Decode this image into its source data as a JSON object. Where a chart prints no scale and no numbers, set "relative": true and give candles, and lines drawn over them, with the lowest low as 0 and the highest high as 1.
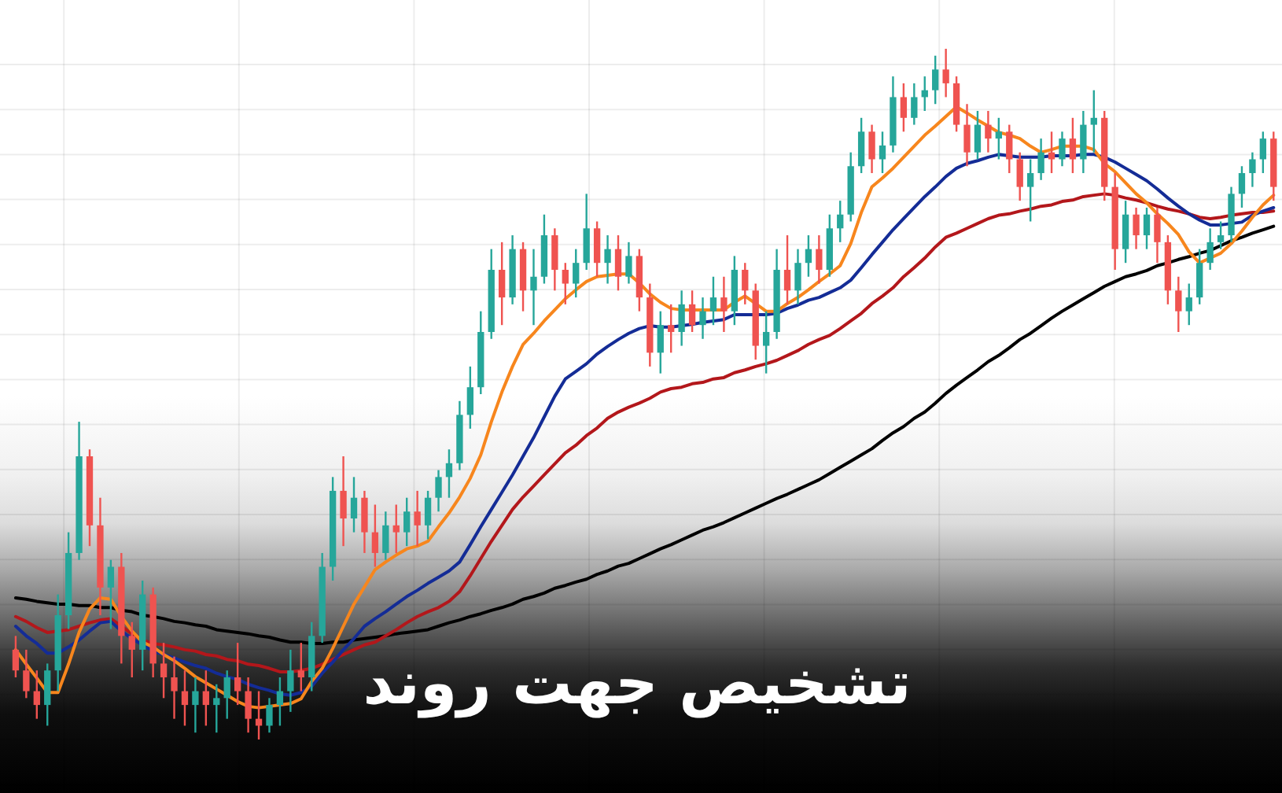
{
  "chart_data": {
    "type": "candlestick",
    "title": "تشخیص جهت روند",
    "relative": true,
    "grid": true,
    "categories": [
      null,
      null,
      null,
      null,
      null,
      null,
      null,
      null,
      null,
      null,
      null,
      null,
      null,
      null,
      null,
      null,
      null,
      null,
      null,
      null,
      null,
      null,
      null,
      null,
      null,
      null,
      null,
      null,
      null,
      null,
      null,
      null,
      null,
      null,
      null,
      null,
      null,
      null,
      null,
      null,
      null,
      null,
      null,
      null,
      null,
      null,
      null,
      null,
      null,
      null,
      null,
      null,
      null,
      null,
      null,
      null,
      null,
      null,
      null,
      null,
      null,
      null,
      null,
      null,
      null,
      null,
      null,
      null,
      null,
      null,
      null,
      null,
      null,
      null,
      null,
      null,
      null,
      null,
      null,
      null,
      null,
      null,
      null,
      null,
      null,
      null,
      null,
      null,
      null,
      null,
      null,
      null,
      null,
      null,
      null,
      null,
      null,
      null,
      null,
      null,
      null,
      null,
      null,
      null,
      null,
      null,
      null,
      null,
      null,
      null,
      null,
      null,
      null,
      null,
      null,
      null,
      null,
      null,
      null,
      null
    ],
    "ohlc": [
      [
        0.13,
        0.15,
        0.09,
        0.1
      ],
      [
        0.1,
        0.13,
        0.06,
        0.07
      ],
      [
        0.07,
        0.1,
        0.03,
        0.05
      ],
      [
        0.05,
        0.11,
        0.02,
        0.1
      ],
      [
        0.1,
        0.21,
        0.07,
        0.18
      ],
      [
        0.18,
        0.3,
        0.16,
        0.27
      ],
      [
        0.27,
        0.46,
        0.26,
        0.41
      ],
      [
        0.41,
        0.42,
        0.28,
        0.31
      ],
      [
        0.31,
        0.35,
        0.18,
        0.22
      ],
      [
        0.22,
        0.26,
        0.16,
        0.25
      ],
      [
        0.25,
        0.27,
        0.11,
        0.15
      ],
      [
        0.15,
        0.17,
        0.09,
        0.13
      ],
      [
        0.13,
        0.23,
        0.1,
        0.21
      ],
      [
        0.21,
        0.22,
        0.09,
        0.11
      ],
      [
        0.11,
        0.14,
        0.06,
        0.09
      ],
      [
        0.09,
        0.12,
        0.03,
        0.07
      ],
      [
        0.07,
        0.1,
        0.02,
        0.05
      ],
      [
        0.05,
        0.09,
        0.01,
        0.07
      ],
      [
        0.07,
        0.1,
        0.02,
        0.05
      ],
      [
        0.05,
        0.08,
        0.01,
        0.06
      ],
      [
        0.06,
        0.1,
        0.03,
        0.09
      ],
      [
        0.09,
        0.14,
        0.05,
        0.07
      ],
      [
        0.07,
        0.09,
        0.01,
        0.03
      ],
      [
        0.03,
        0.07,
        0,
        0.02
      ],
      [
        0.02,
        0.06,
        0.01,
        0.05
      ],
      [
        0.05,
        0.09,
        0.02,
        0.07
      ],
      [
        0.07,
        0.13,
        0.04,
        0.1
      ],
      [
        0.1,
        0.14,
        0.07,
        0.09
      ],
      [
        0.09,
        0.17,
        0.07,
        0.15
      ],
      [
        0.15,
        0.27,
        0.14,
        0.25
      ],
      [
        0.25,
        0.38,
        0.23,
        0.36
      ],
      [
        0.36,
        0.41,
        0.28,
        0.32
      ],
      [
        0.32,
        0.38,
        0.3,
        0.35
      ],
      [
        0.35,
        0.36,
        0.27,
        0.3
      ],
      [
        0.3,
        0.34,
        0.25,
        0.27
      ],
      [
        0.27,
        0.33,
        0.26,
        0.31
      ],
      [
        0.31,
        0.34,
        0.27,
        0.3
      ],
      [
        0.3,
        0.35,
        0.28,
        0.33
      ],
      [
        0.33,
        0.36,
        0.28,
        0.31
      ],
      [
        0.31,
        0.36,
        0.29,
        0.35
      ],
      [
        0.35,
        0.39,
        0.33,
        0.38
      ],
      [
        0.38,
        0.42,
        0.35,
        0.4
      ],
      [
        0.4,
        0.49,
        0.39,
        0.47
      ],
      [
        0.47,
        0.54,
        0.45,
        0.51
      ],
      [
        0.51,
        0.62,
        0.5,
        0.59
      ],
      [
        0.59,
        0.71,
        0.58,
        0.68
      ],
      [
        0.68,
        0.72,
        0.6,
        0.64
      ],
      [
        0.64,
        0.73,
        0.63,
        0.71
      ],
      [
        0.71,
        0.72,
        0.62,
        0.65
      ],
      [
        0.65,
        0.71,
        0.6,
        0.67
      ],
      [
        0.67,
        0.76,
        0.66,
        0.73
      ],
      [
        0.73,
        0.74,
        0.65,
        0.68
      ],
      [
        0.68,
        0.69,
        0.63,
        0.66
      ],
      [
        0.66,
        0.71,
        0.64,
        0.69
      ],
      [
        0.69,
        0.79,
        0.68,
        0.74
      ],
      [
        0.74,
        0.75,
        0.67,
        0.69
      ],
      [
        0.69,
        0.73,
        0.66,
        0.71
      ],
      [
        0.71,
        0.73,
        0.65,
        0.67
      ],
      [
        0.67,
        0.72,
        0.66,
        0.7
      ],
      [
        0.7,
        0.71,
        0.62,
        0.64
      ],
      [
        0.64,
        0.66,
        0.54,
        0.56
      ],
      [
        0.56,
        0.62,
        0.53,
        0.6
      ],
      [
        0.6,
        0.63,
        0.56,
        0.59
      ],
      [
        0.59,
        0.65,
        0.57,
        0.63
      ],
      [
        0.63,
        0.65,
        0.59,
        0.6
      ],
      [
        0.6,
        0.64,
        0.58,
        0.62
      ],
      [
        0.62,
        0.67,
        0.6,
        0.64
      ],
      [
        0.64,
        0.67,
        0.59,
        0.62
      ],
      [
        0.62,
        0.7,
        0.6,
        0.68
      ],
      [
        0.68,
        0.69,
        0.63,
        0.65
      ],
      [
        0.65,
        0.66,
        0.55,
        0.57
      ],
      [
        0.57,
        0.62,
        0.53,
        0.59
      ],
      [
        0.59,
        0.71,
        0.58,
        0.68
      ],
      [
        0.68,
        0.73,
        0.63,
        0.65
      ],
      [
        0.65,
        0.71,
        0.63,
        0.69
      ],
      [
        0.69,
        0.73,
        0.67,
        0.71
      ],
      [
        0.71,
        0.73,
        0.66,
        0.68
      ],
      [
        0.68,
        0.76,
        0.67,
        0.74
      ],
      [
        0.74,
        0.78,
        0.72,
        0.76
      ],
      [
        0.76,
        0.85,
        0.75,
        0.83
      ],
      [
        0.83,
        0.9,
        0.82,
        0.88
      ],
      [
        0.88,
        0.89,
        0.82,
        0.84
      ],
      [
        0.84,
        0.88,
        0.82,
        0.86
      ],
      [
        0.86,
        0.96,
        0.85,
        0.93
      ],
      [
        0.93,
        0.95,
        0.88,
        0.9
      ],
      [
        0.9,
        0.95,
        0.89,
        0.93
      ],
      [
        0.93,
        0.96,
        0.91,
        0.94
      ],
      [
        0.94,
        0.99,
        0.92,
        0.97
      ],
      [
        0.97,
        1,
        0.93,
        0.95
      ],
      [
        0.95,
        0.96,
        0.88,
        0.89
      ],
      [
        0.89,
        0.92,
        0.83,
        0.85
      ],
      [
        0.85,
        0.91,
        0.84,
        0.89
      ],
      [
        0.89,
        0.91,
        0.85,
        0.87
      ],
      [
        0.87,
        0.9,
        0.84,
        0.88
      ],
      [
        0.88,
        0.89,
        0.82,
        0.84
      ],
      [
        0.84,
        0.85,
        0.78,
        0.8
      ],
      [
        0.8,
        0.84,
        0.75,
        0.82
      ],
      [
        0.82,
        0.87,
        0.81,
        0.85
      ],
      [
        0.85,
        0.88,
        0.82,
        0.84
      ],
      [
        0.84,
        0.88,
        0.83,
        0.87
      ],
      [
        0.87,
        0.9,
        0.82,
        0.84
      ],
      [
        0.84,
        0.91,
        0.82,
        0.89
      ],
      [
        0.89,
        0.94,
        0.85,
        0.9
      ],
      [
        0.9,
        0.91,
        0.78,
        0.8
      ],
      [
        0.8,
        0.82,
        0.68,
        0.71
      ],
      [
        0.71,
        0.78,
        0.69,
        0.76
      ],
      [
        0.76,
        0.77,
        0.71,
        0.73
      ],
      [
        0.73,
        0.77,
        0.71,
        0.76
      ],
      [
        0.76,
        0.77,
        0.69,
        0.72
      ],
      [
        0.72,
        0.73,
        0.63,
        0.65
      ],
      [
        0.65,
        0.67,
        0.59,
        0.62
      ],
      [
        0.62,
        0.66,
        0.6,
        0.64
      ],
      [
        0.64,
        0.71,
        0.63,
        0.69
      ],
      [
        0.69,
        0.74,
        0.68,
        0.72
      ],
      [
        0.72,
        0.75,
        0.71,
        0.73
      ],
      [
        0.73,
        0.8,
        0.72,
        0.79
      ],
      [
        0.79,
        0.83,
        0.77,
        0.82
      ],
      [
        0.82,
        0.85,
        0.8,
        0.84
      ],
      [
        0.84,
        0.88,
        0.82,
        0.87
      ],
      [
        0.87,
        0.88,
        0.78,
        0.8
      ]
    ],
    "colors": [
      "#ef5350",
      "#ef5350",
      "#ef5350",
      "#26a69a",
      "#26a69a",
      "#26a69a",
      "#26a69a",
      "#ef5350",
      "#ef5350",
      "#26a69a",
      "#ef5350",
      "#ef5350",
      "#26a69a",
      "#ef5350",
      "#ef5350",
      "#ef5350",
      "#ef5350",
      "#26a69a",
      "#ef5350",
      "#26a69a",
      "#26a69a",
      "#ef5350",
      "#ef5350",
      "#ef5350",
      "#26a69a",
      "#26a69a",
      "#26a69a",
      "#ef5350",
      "#26a69a",
      "#26a69a",
      "#26a69a",
      "#ef5350",
      "#26a69a",
      "#ef5350",
      "#ef5350",
      "#26a69a",
      "#ef5350",
      "#26a69a",
      "#ef5350",
      "#26a69a",
      "#26a69a",
      "#26a69a",
      "#26a69a",
      "#26a69a",
      "#26a69a",
      "#26a69a",
      "#ef5350",
      "#26a69a",
      "#ef5350",
      "#26a69a",
      "#26a69a",
      "#ef5350",
      "#ef5350",
      "#26a69a",
      "#26a69a",
      "#ef5350",
      "#26a69a",
      "#ef5350",
      "#26a69a",
      "#ef5350",
      "#ef5350",
      "#26a69a",
      "#ef5350",
      "#26a69a",
      "#ef5350",
      "#26a69a",
      "#26a69a",
      "#ef5350",
      "#26a69a",
      "#ef5350",
      "#ef5350",
      "#26a69a",
      "#26a69a",
      "#ef5350",
      "#26a69a",
      "#26a69a",
      "#ef5350",
      "#26a69a",
      "#26a69a",
      "#26a69a",
      "#26a69a",
      "#ef5350",
      "#26a69a",
      "#26a69a",
      "#ef5350",
      "#26a69a",
      "#26a69a",
      "#26a69a",
      "#ef5350",
      "#ef5350",
      "#ef5350",
      "#26a69a",
      "#ef5350",
      "#26a69a",
      "#ef5350",
      "#ef5350",
      "#26a69a",
      "#26a69a",
      "#ef5350",
      "#26a69a",
      "#ef5350",
      "#26a69a",
      "#26a69a",
      "#ef5350",
      "#ef5350",
      "#26a69a",
      "#ef5350",
      "#26a69a",
      "#ef5350",
      "#ef5350",
      "#ef5350",
      "#26a69a",
      "#26a69a",
      "#26a69a",
      "#26a69a",
      "#26a69a",
      "#26a69a",
      "#26a69a",
      "#26a69a",
      "#ef5350"
    ],
    "series": [
      {
        "type": "line",
        "color": "#000000",
        "values": [
          0.205,
          0.203,
          0.2,
          0.198,
          0.196,
          0.196,
          0.194,
          0.194,
          0.191,
          0.191,
          0.187,
          0.185,
          0.18,
          0.178,
          0.175,
          0.171,
          0.169,
          0.166,
          0.164,
          0.159,
          0.157,
          0.155,
          0.153,
          0.15,
          0.148,
          0.144,
          0.141,
          0.141,
          0.139,
          0.139,
          0.141,
          0.141,
          0.144,
          0.146,
          0.148,
          0.15,
          0.153,
          0.155,
          0.157,
          0.159,
          0.164,
          0.169,
          0.173,
          0.178,
          0.182,
          0.187,
          0.191,
          0.196,
          0.203,
          0.207,
          0.212,
          0.219,
          0.223,
          0.228,
          0.232,
          0.239,
          0.244,
          0.251,
          0.255,
          0.262,
          0.269,
          0.276,
          0.282,
          0.289,
          0.296,
          0.303,
          0.308,
          0.314,
          0.321,
          0.328,
          0.335,
          0.342,
          0.349,
          0.355,
          0.362,
          0.369,
          0.376,
          0.385,
          0.394,
          0.403,
          0.412,
          0.421,
          0.433,
          0.444,
          0.453,
          0.465,
          0.474,
          0.487,
          0.501,
          0.513,
          0.524,
          0.535,
          0.547,
          0.556,
          0.567,
          0.579,
          0.588,
          0.599,
          0.61,
          0.62,
          0.629,
          0.638,
          0.647,
          0.656,
          0.663,
          0.67,
          0.674,
          0.679,
          0.686,
          0.69,
          0.695,
          0.699,
          0.704,
          0.708,
          0.715,
          0.722,
          0.727,
          0.733,
          0.738,
          0.743
        ]
      },
      {
        "type": "line",
        "color": "#b3171b",
        "values": [
          0.178,
          0.171,
          0.162,
          0.155,
          0.157,
          0.159,
          0.164,
          0.169,
          0.173,
          0.175,
          0.164,
          0.153,
          0.144,
          0.139,
          0.137,
          0.134,
          0.13,
          0.128,
          0.123,
          0.121,
          0.116,
          0.114,
          0.109,
          0.107,
          0.103,
          0.098,
          0.098,
          0.1,
          0.103,
          0.109,
          0.116,
          0.123,
          0.13,
          0.137,
          0.141,
          0.15,
          0.159,
          0.169,
          0.178,
          0.185,
          0.191,
          0.2,
          0.214,
          0.237,
          0.262,
          0.287,
          0.31,
          0.333,
          0.351,
          0.367,
          0.383,
          0.399,
          0.415,
          0.426,
          0.44,
          0.451,
          0.465,
          0.474,
          0.481,
          0.487,
          0.494,
          0.503,
          0.508,
          0.51,
          0.515,
          0.517,
          0.522,
          0.524,
          0.531,
          0.535,
          0.54,
          0.544,
          0.549,
          0.556,
          0.563,
          0.572,
          0.579,
          0.585,
          0.595,
          0.606,
          0.617,
          0.631,
          0.642,
          0.654,
          0.67,
          0.683,
          0.697,
          0.713,
          0.727,
          0.733,
          0.74,
          0.747,
          0.754,
          0.759,
          0.761,
          0.765,
          0.768,
          0.772,
          0.774,
          0.779,
          0.781,
          0.786,
          0.788,
          0.79,
          0.788,
          0.784,
          0.781,
          0.777,
          0.772,
          0.768,
          0.765,
          0.761,
          0.756,
          0.754,
          0.756,
          0.759,
          0.761,
          0.763,
          0.763,
          0.765
        ]
      },
      {
        "type": "line",
        "color": "#142c96",
        "values": [
          0.164,
          0.15,
          0.139,
          0.125,
          0.125,
          0.134,
          0.144,
          0.157,
          0.169,
          0.171,
          0.157,
          0.146,
          0.137,
          0.128,
          0.123,
          0.118,
          0.112,
          0.107,
          0.103,
          0.096,
          0.091,
          0.087,
          0.08,
          0.075,
          0.071,
          0.066,
          0.064,
          0.068,
          0.077,
          0.096,
          0.112,
          0.13,
          0.146,
          0.164,
          0.175,
          0.185,
          0.196,
          0.207,
          0.216,
          0.226,
          0.235,
          0.244,
          0.257,
          0.282,
          0.308,
          0.333,
          0.358,
          0.383,
          0.41,
          0.437,
          0.467,
          0.497,
          0.522,
          0.533,
          0.544,
          0.558,
          0.569,
          0.579,
          0.588,
          0.595,
          0.599,
          0.597,
          0.597,
          0.599,
          0.601,
          0.604,
          0.606,
          0.608,
          0.615,
          0.615,
          0.615,
          0.615,
          0.617,
          0.624,
          0.629,
          0.636,
          0.64,
          0.647,
          0.654,
          0.665,
          0.683,
          0.702,
          0.72,
          0.738,
          0.754,
          0.77,
          0.786,
          0.8,
          0.815,
          0.827,
          0.834,
          0.838,
          0.843,
          0.847,
          0.845,
          0.843,
          0.843,
          0.843,
          0.845,
          0.845,
          0.845,
          0.847,
          0.847,
          0.843,
          0.836,
          0.827,
          0.818,
          0.809,
          0.797,
          0.784,
          0.772,
          0.761,
          0.752,
          0.745,
          0.745,
          0.747,
          0.749,
          0.759,
          0.765,
          0.77
        ]
      },
      {
        "type": "line",
        "color": "#f7861d",
        "values": [
          0.13,
          0.109,
          0.089,
          0.068,
          0.068,
          0.109,
          0.155,
          0.189,
          0.205,
          0.203,
          0.178,
          0.157,
          0.141,
          0.134,
          0.123,
          0.114,
          0.103,
          0.091,
          0.082,
          0.073,
          0.064,
          0.055,
          0.048,
          0.046,
          0.048,
          0.05,
          0.052,
          0.059,
          0.084,
          0.103,
          0.132,
          0.164,
          0.196,
          0.221,
          0.246,
          0.257,
          0.267,
          0.276,
          0.28,
          0.287,
          0.308,
          0.328,
          0.351,
          0.378,
          0.412,
          0.46,
          0.503,
          0.54,
          0.572,
          0.588,
          0.606,
          0.622,
          0.638,
          0.651,
          0.663,
          0.67,
          0.672,
          0.674,
          0.674,
          0.661,
          0.645,
          0.633,
          0.624,
          0.622,
          0.622,
          0.622,
          0.622,
          0.622,
          0.633,
          0.642,
          0.631,
          0.62,
          0.62,
          0.631,
          0.64,
          0.651,
          0.663,
          0.674,
          0.686,
          0.718,
          0.763,
          0.8,
          0.813,
          0.827,
          0.843,
          0.859,
          0.875,
          0.888,
          0.902,
          0.916,
          0.907,
          0.897,
          0.888,
          0.879,
          0.875,
          0.87,
          0.859,
          0.85,
          0.854,
          0.859,
          0.859,
          0.859,
          0.854,
          0.834,
          0.822,
          0.806,
          0.79,
          0.777,
          0.761,
          0.747,
          0.731,
          0.706,
          0.69,
          0.697,
          0.704,
          0.718,
          0.736,
          0.756,
          0.774,
          0.788
        ]
      }
    ]
  }
}
